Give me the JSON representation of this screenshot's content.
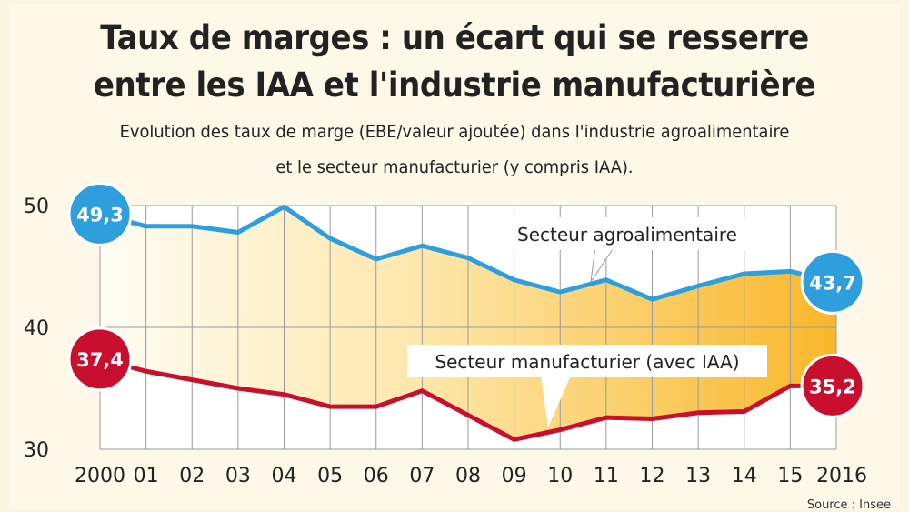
{
  "title_line1": "Taux de marges : un écart qui se resserre",
  "title_line2": "entre les IAA et l'industrie manufacturière",
  "subtitle_line1": "Evolution des taux de marge (EBE/valeur ajoutée) dans l'industrie agroalimentaire",
  "subtitle_line2": "et le secteur manufacturier (y compris IAA).",
  "source": "Source : Insee",
  "chart_data": {
    "type": "line",
    "x": [
      "2000",
      "01",
      "02",
      "03",
      "04",
      "05",
      "06",
      "07",
      "08",
      "09",
      "10",
      "11",
      "12",
      "13",
      "14",
      "15",
      "2016"
    ],
    "ylim": [
      30,
      50
    ],
    "yticks": [
      "50",
      "40",
      "30"
    ],
    "grid": true,
    "series": [
      {
        "name": "Secteur agroalimentaire",
        "color": "#2e9fdc",
        "values": [
          49.3,
          48.3,
          48.3,
          47.8,
          49.9,
          47.3,
          45.6,
          46.7,
          45.7,
          43.9,
          42.9,
          43.9,
          42.3,
          43.4,
          44.4,
          44.6,
          43.7
        ],
        "start_label": "49,3",
        "end_label": "43,7"
      },
      {
        "name": "Secteur manufacturier (avec IAA)",
        "color": "#c8102e",
        "values": [
          37.4,
          36.4,
          35.7,
          35.0,
          34.5,
          33.5,
          33.5,
          34.8,
          32.8,
          30.8,
          31.6,
          32.6,
          32.5,
          33.0,
          33.1,
          35.2,
          35.2
        ],
        "start_label": "37,4",
        "end_label": "35,2"
      }
    ]
  }
}
